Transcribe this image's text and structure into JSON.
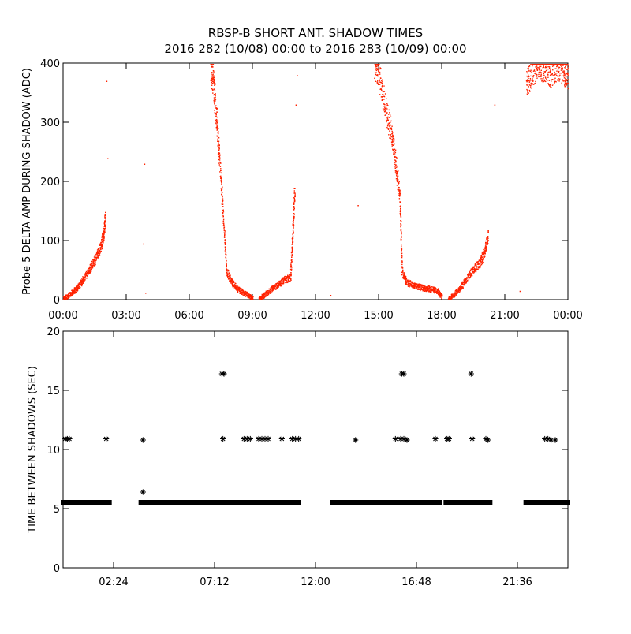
{
  "title": {
    "line1": "RBSP-B SHORT ANT. SHADOW TIMES",
    "line2": "2016 282 (10/08) 00:00 to 2016 283 (10/09) 00:00"
  },
  "colors": {
    "trace": "#ff2200",
    "axes": "#000000",
    "background": "#ffffff"
  },
  "chart_data": [
    {
      "type": "scatter",
      "title": "",
      "xlabel": "",
      "ylabel": "Probe 5 DELTA AMP DURING SHADOW (ADC)",
      "x_unit": "hours since 00:00",
      "xlim": [
        0,
        24
      ],
      "ylim": [
        0,
        400
      ],
      "x_ticks": [
        0,
        3,
        6,
        9,
        12,
        15,
        18,
        21,
        24
      ],
      "x_tick_labels": [
        "00:00",
        "03:00",
        "06:00",
        "09:00",
        "12:00",
        "15:00",
        "18:00",
        "21:00",
        "00:00"
      ],
      "y_ticks": [
        0,
        100,
        200,
        300,
        400
      ],
      "y_tick_labels": [
        "0",
        "100",
        "200",
        "300",
        "400"
      ],
      "grid": false,
      "marker_color": "#ff2200",
      "segments": [
        {
          "x": [
            0.0,
            0.25,
            0.5,
            0.75,
            1.0,
            1.25,
            1.5,
            1.75,
            1.9,
            2.0
          ],
          "y": [
            3,
            8,
            15,
            25,
            38,
            52,
            68,
            88,
            110,
            140
          ]
        },
        {
          "x": [
            7.0,
            7.15,
            7.3,
            7.45,
            7.6,
            7.75,
            8.0,
            8.3,
            8.6,
            8.9,
            9.0
          ],
          "y": [
            400,
            360,
            300,
            220,
            140,
            50,
            30,
            18,
            12,
            5,
            2
          ]
        },
        {
          "x": [
            9.3,
            9.6,
            9.9,
            10.2,
            10.5,
            10.8,
            10.9,
            11.0
          ],
          "y": [
            2,
            10,
            18,
            26,
            34,
            38,
            110,
            190
          ]
        },
        {
          "x": [
            14.8,
            15.0,
            15.3,
            15.6,
            15.8,
            16.0,
            16.1,
            16.3,
            16.6,
            16.9,
            17.2,
            17.5,
            17.8,
            18.0
          ],
          "y": [
            400,
            380,
            330,
            280,
            230,
            170,
            50,
            30,
            26,
            22,
            20,
            18,
            15,
            5
          ]
        },
        {
          "x": [
            18.3,
            18.6,
            18.9,
            19.2,
            19.5,
            19.8,
            20.0,
            20.2
          ],
          "y": [
            2,
            10,
            22,
            38,
            52,
            62,
            80,
            110
          ]
        },
        {
          "x": [
            22.0,
            22.3,
            22.6,
            22.9,
            23.2,
            23.5,
            23.8,
            24.0
          ],
          "y": [
            360,
            390,
            400,
            395,
            385,
            400,
            390,
            380
          ]
        }
      ],
      "sparse_points": [
        {
          "x": 2.05,
          "y": 370
        },
        {
          "x": 2.1,
          "y": 240
        },
        {
          "x": 3.8,
          "y": 95
        },
        {
          "x": 3.85,
          "y": 230
        },
        {
          "x": 3.9,
          "y": 12
        },
        {
          "x": 11.1,
          "y": 380
        },
        {
          "x": 11.05,
          "y": 330
        },
        {
          "x": 12.7,
          "y": 8
        },
        {
          "x": 14.0,
          "y": 160
        },
        {
          "x": 20.5,
          "y": 330
        },
        {
          "x": 21.7,
          "y": 15
        }
      ]
    },
    {
      "type": "scatter",
      "title": "",
      "xlabel": "",
      "ylabel": "TIME BETWEEN SHADOWS (SEC)",
      "x_unit": "hours since 00:00",
      "xlim": [
        0,
        24
      ],
      "ylim": [
        0,
        20
      ],
      "x_ticks": [
        2.4,
        7.2,
        12.0,
        16.8,
        21.6
      ],
      "x_tick_labels": [
        "02:24",
        "07:12",
        "12:00",
        "16:48",
        "21:36"
      ],
      "y_ticks": [
        0,
        5,
        10,
        15,
        20
      ],
      "y_tick_labels": [
        "0",
        "5",
        "10",
        "15",
        "20"
      ],
      "grid": false,
      "marker": "asterisk",
      "marker_color": "#000000",
      "baseline_value": 5.5,
      "baseline_ranges": [
        [
          0.0,
          2.2
        ],
        [
          3.7,
          11.2
        ],
        [
          12.8,
          17.9
        ],
        [
          18.2,
          20.3
        ],
        [
          22.0,
          24.0
        ]
      ],
      "points": [
        {
          "x": 0.1,
          "y": 10.9
        },
        {
          "x": 0.2,
          "y": 10.9
        },
        {
          "x": 0.3,
          "y": 10.9
        },
        {
          "x": 2.05,
          "y": 10.9
        },
        {
          "x": 3.8,
          "y": 10.8
        },
        {
          "x": 3.8,
          "y": 6.4
        },
        {
          "x": 7.55,
          "y": 16.4
        },
        {
          "x": 7.65,
          "y": 16.4
        },
        {
          "x": 7.6,
          "y": 10.9
        },
        {
          "x": 8.6,
          "y": 10.9
        },
        {
          "x": 8.75,
          "y": 10.9
        },
        {
          "x": 8.9,
          "y": 10.9
        },
        {
          "x": 9.3,
          "y": 10.9
        },
        {
          "x": 9.45,
          "y": 10.9
        },
        {
          "x": 9.6,
          "y": 10.9
        },
        {
          "x": 9.75,
          "y": 10.9
        },
        {
          "x": 10.4,
          "y": 10.9
        },
        {
          "x": 10.9,
          "y": 10.9
        },
        {
          "x": 11.05,
          "y": 10.9
        },
        {
          "x": 11.2,
          "y": 10.9
        },
        {
          "x": 13.9,
          "y": 10.8
        },
        {
          "x": 15.8,
          "y": 10.9
        },
        {
          "x": 16.1,
          "y": 16.4
        },
        {
          "x": 16.2,
          "y": 16.4
        },
        {
          "x": 16.05,
          "y": 10.9
        },
        {
          "x": 16.2,
          "y": 10.9
        },
        {
          "x": 16.35,
          "y": 10.8
        },
        {
          "x": 17.7,
          "y": 10.9
        },
        {
          "x": 18.25,
          "y": 10.9
        },
        {
          "x": 18.35,
          "y": 10.9
        },
        {
          "x": 19.4,
          "y": 16.4
        },
        {
          "x": 19.45,
          "y": 10.9
        },
        {
          "x": 20.1,
          "y": 10.9
        },
        {
          "x": 20.2,
          "y": 10.8
        },
        {
          "x": 22.9,
          "y": 10.9
        },
        {
          "x": 23.05,
          "y": 10.9
        },
        {
          "x": 23.2,
          "y": 10.8
        },
        {
          "x": 23.4,
          "y": 10.8
        }
      ]
    }
  ]
}
